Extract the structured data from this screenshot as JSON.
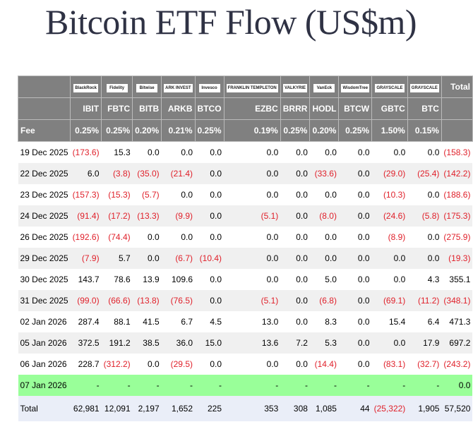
{
  "title": "Bitcoin ETF Flow (US$m)",
  "logos": [
    "BlackRock",
    "Fidelity",
    "Bitwise",
    "ARK INVEST",
    "Invesco",
    "FRANKLIN TEMPLETON",
    "VALKYRIE",
    "VanEck",
    "WisdomTree",
    "GRAYSCALE",
    "GRAYSCALE"
  ],
  "total_label": "Total",
  "tickers": [
    "IBIT",
    "FBTC",
    "BITB",
    "ARKB",
    "BTCO",
    "EZBC",
    "BRRR",
    "HODL",
    "BTCW",
    "GBTC",
    "BTC"
  ],
  "fee_label": "Fee",
  "fees": [
    "0.25%",
    "0.25%",
    "0.20%",
    "0.21%",
    "0.25%",
    "0.19%",
    "0.25%",
    "0.20%",
    "0.25%",
    "1.50%",
    "0.15%"
  ],
  "rows": [
    {
      "date": "19 Dec 2025",
      "values": [
        "(173.6)",
        "15.3",
        "0.0",
        "0.0",
        "0.0",
        "0.0",
        "0.0",
        "0.0",
        "0.0",
        "0.0",
        "0.0",
        "(158.3)"
      ]
    },
    {
      "date": "22 Dec 2025",
      "values": [
        "6.0",
        "(3.8)",
        "(35.0)",
        "(21.4)",
        "0.0",
        "0.0",
        "0.0",
        "(33.6)",
        "0.0",
        "(29.0)",
        "(25.4)",
        "(142.2)"
      ]
    },
    {
      "date": "23 Dec 2025",
      "values": [
        "(157.3)",
        "(15.3)",
        "(5.7)",
        "0.0",
        "0.0",
        "0.0",
        "0.0",
        "0.0",
        "0.0",
        "(10.3)",
        "0.0",
        "(188.6)"
      ]
    },
    {
      "date": "24 Dec 2025",
      "values": [
        "(91.4)",
        "(17.2)",
        "(13.3)",
        "(9.9)",
        "0.0",
        "(5.1)",
        "0.0",
        "(8.0)",
        "0.0",
        "(24.6)",
        "(5.8)",
        "(175.3)"
      ]
    },
    {
      "date": "26 Dec 2025",
      "values": [
        "(192.6)",
        "(74.4)",
        "0.0",
        "0.0",
        "0.0",
        "0.0",
        "0.0",
        "0.0",
        "0.0",
        "(8.9)",
        "0.0",
        "(275.9)"
      ]
    },
    {
      "date": "29 Dec 2025",
      "values": [
        "(7.9)",
        "5.7",
        "0.0",
        "(6.7)",
        "(10.4)",
        "0.0",
        "0.0",
        "0.0",
        "0.0",
        "0.0",
        "0.0",
        "(19.3)"
      ]
    },
    {
      "date": "30 Dec 2025",
      "values": [
        "143.7",
        "78.6",
        "13.9",
        "109.6",
        "0.0",
        "0.0",
        "0.0",
        "5.0",
        "0.0",
        "0.0",
        "4.3",
        "355.1"
      ]
    },
    {
      "date": "31 Dec 2025",
      "values": [
        "(99.0)",
        "(66.6)",
        "(13.8)",
        "(76.5)",
        "0.0",
        "(5.1)",
        "0.0",
        "(6.8)",
        "0.0",
        "(69.1)",
        "(11.2)",
        "(348.1)"
      ]
    },
    {
      "date": "02 Jan 2026",
      "values": [
        "287.4",
        "88.1",
        "41.5",
        "6.7",
        "4.5",
        "13.0",
        "0.0",
        "8.3",
        "0.0",
        "15.4",
        "6.4",
        "471.3"
      ]
    },
    {
      "date": "05 Jan 2026",
      "values": [
        "372.5",
        "191.2",
        "38.5",
        "36.0",
        "15.0",
        "13.6",
        "7.2",
        "5.3",
        "0.0",
        "0.0",
        "17.9",
        "697.2"
      ]
    },
    {
      "date": "06 Jan 2026",
      "values": [
        "228.7",
        "(312.2)",
        "0.0",
        "(29.5)",
        "0.0",
        "0.0",
        "0.0",
        "(14.4)",
        "0.0",
        "(83.1)",
        "(32.7)",
        "(243.2)"
      ]
    }
  ],
  "today": {
    "date": "07 Jan 2026",
    "values": [
      "-",
      "-",
      "-",
      "-",
      "-",
      "-",
      "-",
      "-",
      "-",
      "-",
      "-",
      "0.0"
    ]
  },
  "totals": {
    "label": "Total",
    "values": [
      "62,981",
      "12,091",
      "2,197",
      "1,652",
      "225",
      "353",
      "308",
      "1,085",
      "44",
      "(25,322)",
      "1,905",
      "57,520"
    ]
  },
  "colors": {
    "header_bg": "#808080",
    "negative": "#e0202a",
    "today_bg": "#99ff99",
    "total_bg": "#eaeef8"
  }
}
